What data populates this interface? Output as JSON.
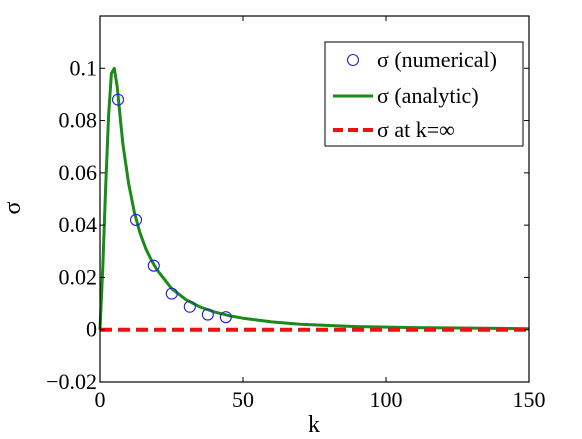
{
  "chart_data": {
    "type": "line",
    "xlabel": "k",
    "ylabel": "σ",
    "xlim": [
      0,
      150
    ],
    "ylim": [
      -0.02,
      0.12
    ],
    "x_ticks": [
      0,
      50,
      100,
      150
    ],
    "x_tick_labels": [
      "0",
      "50",
      "100",
      "150"
    ],
    "y_ticks": [
      -0.02,
      0,
      0.02,
      0.04,
      0.06,
      0.08,
      0.1
    ],
    "y_tick_labels": [
      "−0.02",
      "0",
      "0.02",
      "0.04",
      "0.06",
      "0.08",
      "0.1"
    ],
    "grid": false,
    "legend_position": "top-right",
    "series": [
      {
        "name": "σ (numerical)",
        "style": "markers",
        "marker": "open-circle",
        "color": "#2222cc",
        "x": [
          6.3,
          12.6,
          18.8,
          25.1,
          31.4,
          37.7,
          44.0
        ],
        "y": [
          0.088,
          0.042,
          0.0245,
          0.0138,
          0.0088,
          0.0058,
          0.0048
        ]
      },
      {
        "name": "σ (analytic)",
        "style": "solid",
        "color": "#1a8a1a",
        "x": [
          0,
          1,
          2,
          3,
          4,
          5,
          6,
          7,
          8,
          10,
          12,
          14,
          16,
          18,
          20,
          25,
          30,
          35,
          40,
          45,
          50,
          60,
          70,
          80,
          90,
          100,
          110,
          120,
          130,
          140,
          150
        ],
        "y": [
          0,
          0.025,
          0.055,
          0.082,
          0.098,
          0.1,
          0.093,
          0.082,
          0.071,
          0.056,
          0.045,
          0.037,
          0.031,
          0.0265,
          0.0228,
          0.0158,
          0.0115,
          0.0087,
          0.0068,
          0.0054,
          0.0044,
          0.003,
          0.0021,
          0.0016,
          0.0012,
          0.001,
          0.0008,
          0.0007,
          0.0006,
          0.0005,
          0.0004
        ]
      },
      {
        "name": "σ at k=∞",
        "style": "dashed",
        "color": "#ee1111",
        "x": [
          0,
          150
        ],
        "y": [
          0,
          0
        ]
      }
    ]
  }
}
